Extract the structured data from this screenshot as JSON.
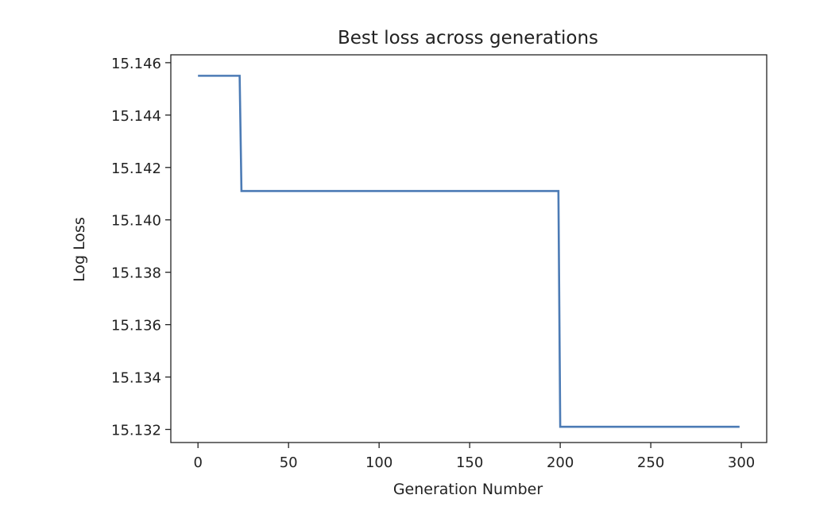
{
  "chart_data": {
    "type": "line",
    "title": "Best loss across generations",
    "xlabel": "Generation Number",
    "ylabel": "Log Loss",
    "xlim": [
      -15,
      314
    ],
    "ylim": [
      15.1315,
      15.1463
    ],
    "x_ticks": [
      0,
      50,
      100,
      150,
      200,
      250,
      300
    ],
    "x_tick_labels": [
      "0",
      "50",
      "100",
      "150",
      "200",
      "250",
      "300"
    ],
    "y_ticks": [
      15.132,
      15.134,
      15.136,
      15.138,
      15.14,
      15.142,
      15.144,
      15.146
    ],
    "y_tick_labels": [
      "15.132",
      "15.134",
      "15.136",
      "15.138",
      "15.140",
      "15.142",
      "15.144",
      "15.146"
    ],
    "grid": false,
    "series": [
      {
        "color": "#4c7bb5",
        "x": [
          0,
          23,
          24,
          199,
          200,
          299
        ],
        "y": [
          15.1455,
          15.1455,
          15.1411,
          15.1411,
          15.1321,
          15.1321
        ]
      }
    ]
  }
}
